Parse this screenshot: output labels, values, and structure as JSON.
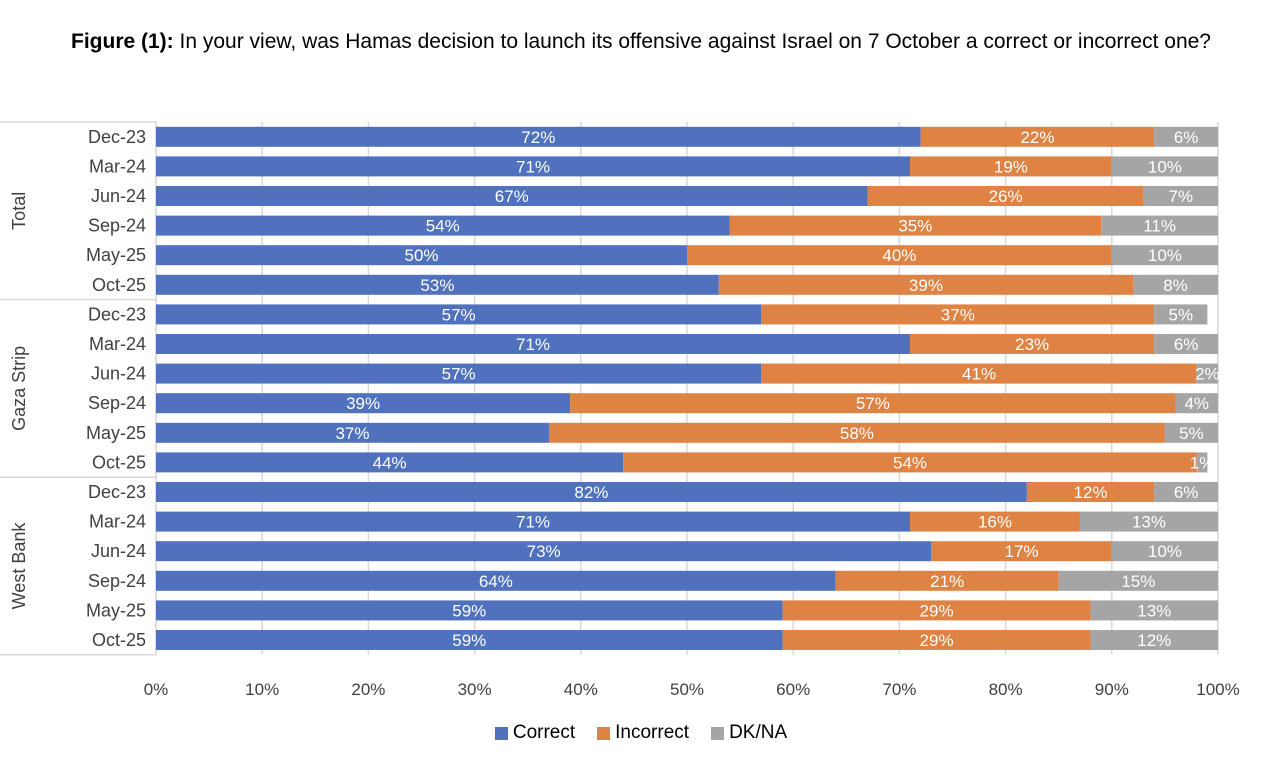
{
  "chart_data": {
    "type": "bar",
    "orientation": "horizontal",
    "stacked": "100%",
    "title_prefix": "Figure (1):",
    "title": "In your view, was Hamas decision to launch its offensive against Israel on 7 October a correct or incorrect one?",
    "xlabel": "",
    "ylabel": "",
    "xlim": [
      0,
      100
    ],
    "x_ticks": [
      "0%",
      "10%",
      "20%",
      "30%",
      "40%",
      "50%",
      "60%",
      "70%",
      "80%",
      "90%",
      "100%"
    ],
    "grid": true,
    "legend_position": "bottom",
    "series_colors": {
      "Correct": "#4f71be",
      "Incorrect": "#de8344",
      "DK/NA": "#a5a5a5"
    },
    "series": [
      {
        "name": "Correct"
      },
      {
        "name": "Incorrect"
      },
      {
        "name": "DK/NA"
      }
    ],
    "groups": [
      {
        "name": "Total",
        "categories": [
          "Dec-23",
          "Mar-24",
          "Jun-24",
          "Sep-24",
          "May-25",
          "Oct-25"
        ],
        "values": {
          "Correct": [
            72,
            71,
            67,
            54,
            50,
            53
          ],
          "Incorrect": [
            22,
            19,
            26,
            35,
            40,
            39
          ],
          "DK/NA": [
            6,
            10,
            7,
            11,
            10,
            8
          ]
        }
      },
      {
        "name": "Gaza Strip",
        "categories": [
          "Dec-23",
          "Mar-24",
          "Jun-24",
          "Sep-24",
          "May-25",
          "Oct-25"
        ],
        "values": {
          "Correct": [
            57,
            71,
            57,
            39,
            37,
            44
          ],
          "Incorrect": [
            37,
            23,
            41,
            57,
            58,
            54
          ],
          "DK/NA": [
            5,
            6,
            2,
            4,
            5,
            1
          ]
        }
      },
      {
        "name": "West Bank",
        "categories": [
          "Dec-23",
          "Mar-24",
          "Jun-24",
          "Sep-24",
          "May-25",
          "Oct-25"
        ],
        "values": {
          "Correct": [
            82,
            71,
            73,
            64,
            59,
            59
          ],
          "Incorrect": [
            12,
            16,
            17,
            21,
            29,
            29
          ],
          "DK/NA": [
            6,
            13,
            10,
            15,
            13,
            12
          ]
        }
      }
    ]
  },
  "legend": {
    "items": [
      {
        "label": "Correct",
        "color": "#4f71be"
      },
      {
        "label": "Incorrect",
        "color": "#de8344"
      },
      {
        "label": "DK/NA",
        "color": "#a5a5a5"
      }
    ]
  }
}
